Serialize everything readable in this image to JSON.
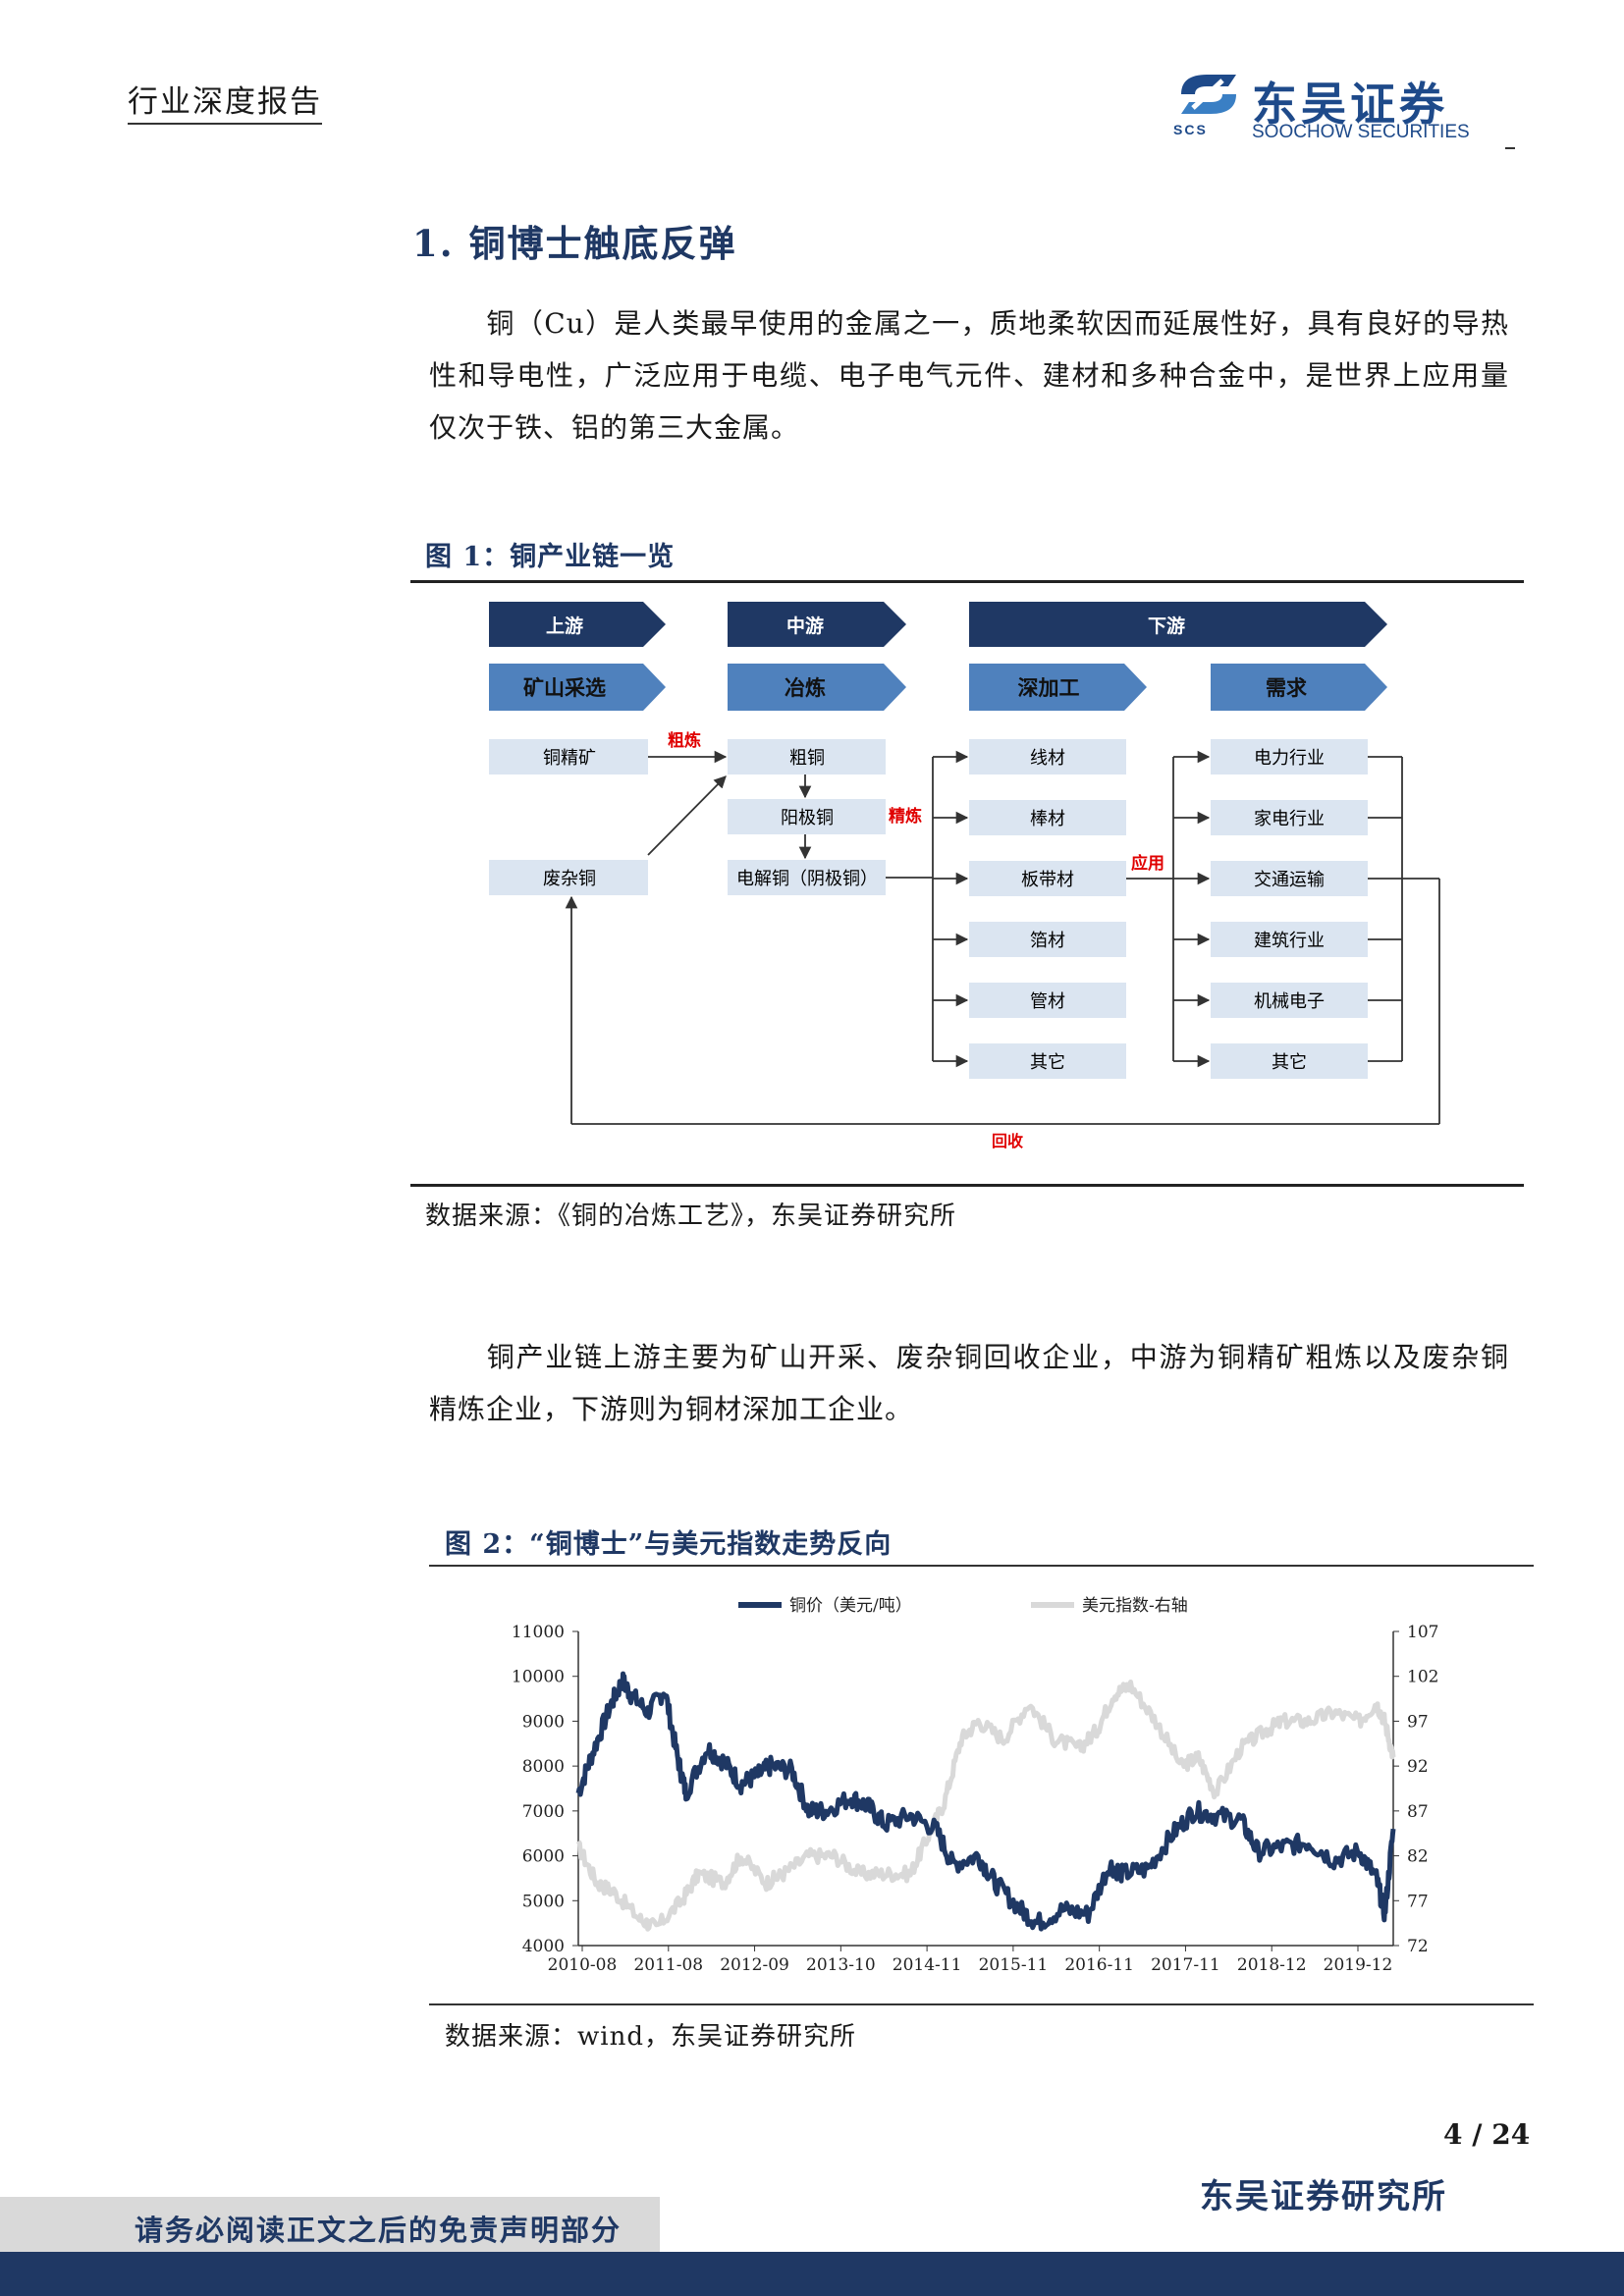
{
  "header": {
    "report_type": "行业深度报告",
    "logo_cn": "东吴证券",
    "logo_en": "SOOCHOW SECURITIES",
    "logo_abbr": "SCS",
    "brand_color": "#1e4a8a"
  },
  "section": {
    "heading": "1.  铜博士触底反弹",
    "para1": "铜（Cu）是人类最早使用的金属之一，质地柔软因而延展性好，具有良好的导热性和导电性，广泛应用于电缆、电子电气元件、建材和多种合金中，是世界上应用量仅次于铁、铝的第三大金属。",
    "para2": "铜产业链上游主要为矿山开采、废杂铜回收企业，中游为铜精矿粗炼以及废杂铜精炼企业，下游则为铜材深加工企业。"
  },
  "figure1": {
    "title": "图 1：铜产业链一览",
    "source": "数据来源：《铜的冶炼工艺》，东吴证券研究所",
    "stage_upstream": "上游",
    "stage_midstream": "中游",
    "stage_downstream": "下游",
    "cat_mining": "矿山采选",
    "cat_smelting": "冶炼",
    "cat_processing": "深加工",
    "cat_demand": "需求",
    "box_concentrate": "铜精矿",
    "box_scrap": "废杂铜",
    "box_blister": "粗铜",
    "box_anode": "阳极铜",
    "box_cathode": "电解铜（阴极铜）",
    "label_rough": "粗炼",
    "label_refine": "精炼",
    "label_apply": "应用",
    "label_recycle": "回收",
    "processing": [
      "线材",
      "棒材",
      "板带材",
      "箔材",
      "管材",
      "其它"
    ],
    "demand": [
      "电力行业",
      "家电行业",
      "交通运输",
      "建筑行业",
      "机械电子",
      "其它"
    ],
    "colors": {
      "dark": "#1f3864",
      "light": "#dbe5f1",
      "red": "#e00000"
    }
  },
  "figure2": {
    "title": "图 2：“铜博士”与美元指数走势反向",
    "source": "数据来源：wind，东吴证券研究所"
  },
  "chart_data": {
    "type": "line",
    "title": "",
    "legend": [
      "铜价（美元/吨）",
      "美元指数-右轴"
    ],
    "legend_position": "top",
    "x_ticks": [
      "2010-08",
      "2011-08",
      "2012-09",
      "2013-10",
      "2014-11",
      "2015-11",
      "2016-11",
      "2017-11",
      "2018-12",
      "2019-12"
    ],
    "y_ticks_left": [
      4000,
      5000,
      6000,
      7000,
      8000,
      9000,
      10000,
      11000
    ],
    "y_ticks_right": [
      72,
      77,
      82,
      87,
      92,
      97,
      102,
      107
    ],
    "ylim_left": [
      4000,
      11000
    ],
    "ylim_right": [
      72,
      107
    ],
    "xlim": [
      2010.58,
      2020.2
    ],
    "series": [
      {
        "name": "铜价（美元/吨）",
        "color": "#1f3864",
        "axis": "left",
        "x": [
          2010.58,
          2010.75,
          2010.95,
          2011.1,
          2011.2,
          2011.4,
          2011.6,
          2011.75,
          2011.85,
          2012.1,
          2012.3,
          2012.5,
          2012.7,
          2012.85,
          2013.1,
          2013.3,
          2013.5,
          2013.8,
          2014.0,
          2014.2,
          2014.5,
          2014.8,
          2015.0,
          2015.3,
          2015.5,
          2015.8,
          2016.0,
          2016.3,
          2016.6,
          2016.85,
          2017.0,
          2017.3,
          2017.6,
          2017.85,
          2018.1,
          2018.4,
          2018.6,
          2018.9,
          2019.2,
          2019.5,
          2019.8,
          2020.0,
          2020.1,
          2020.2
        ],
        "values": [
          7400,
          8300,
          9300,
          9900,
          9600,
          9200,
          9700,
          8200,
          7400,
          8400,
          8100,
          7600,
          7800,
          8000,
          7900,
          7000,
          7000,
          7300,
          7100,
          6700,
          6900,
          6600,
          5800,
          6000,
          5400,
          4800,
          4500,
          4800,
          4700,
          5800,
          5600,
          5700,
          6500,
          7000,
          6900,
          6800,
          6100,
          6200,
          6300,
          5900,
          6100,
          5500,
          4700,
          6600
        ]
      },
      {
        "name": "美元指数-右轴",
        "color": "#d9d9d9",
        "axis": "right",
        "x": [
          2010.58,
          2010.8,
          2011.0,
          2011.3,
          2011.5,
          2011.8,
          2012.0,
          2012.3,
          2012.5,
          2012.8,
          2013.0,
          2013.3,
          2013.6,
          2013.9,
          2014.2,
          2014.5,
          2014.7,
          2014.9,
          2015.1,
          2015.3,
          2015.6,
          2015.9,
          2016.2,
          2016.5,
          2016.7,
          2016.9,
          2017.1,
          2017.4,
          2017.7,
          2017.9,
          2018.1,
          2018.4,
          2018.7,
          2018.9,
          2019.2,
          2019.5,
          2019.8,
          2020.0,
          2020.1,
          2020.2
        ],
        "values": [
          83,
          79,
          78,
          75,
          74,
          77,
          80,
          79,
          82,
          79,
          80,
          82,
          82,
          80,
          80,
          80,
          84,
          88,
          95,
          97,
          95,
          99,
          95,
          94,
          96,
          100,
          101,
          97,
          92,
          93,
          89,
          94,
          96,
          97,
          97,
          98,
          97,
          99,
          97,
          93
        ]
      }
    ]
  }
}
